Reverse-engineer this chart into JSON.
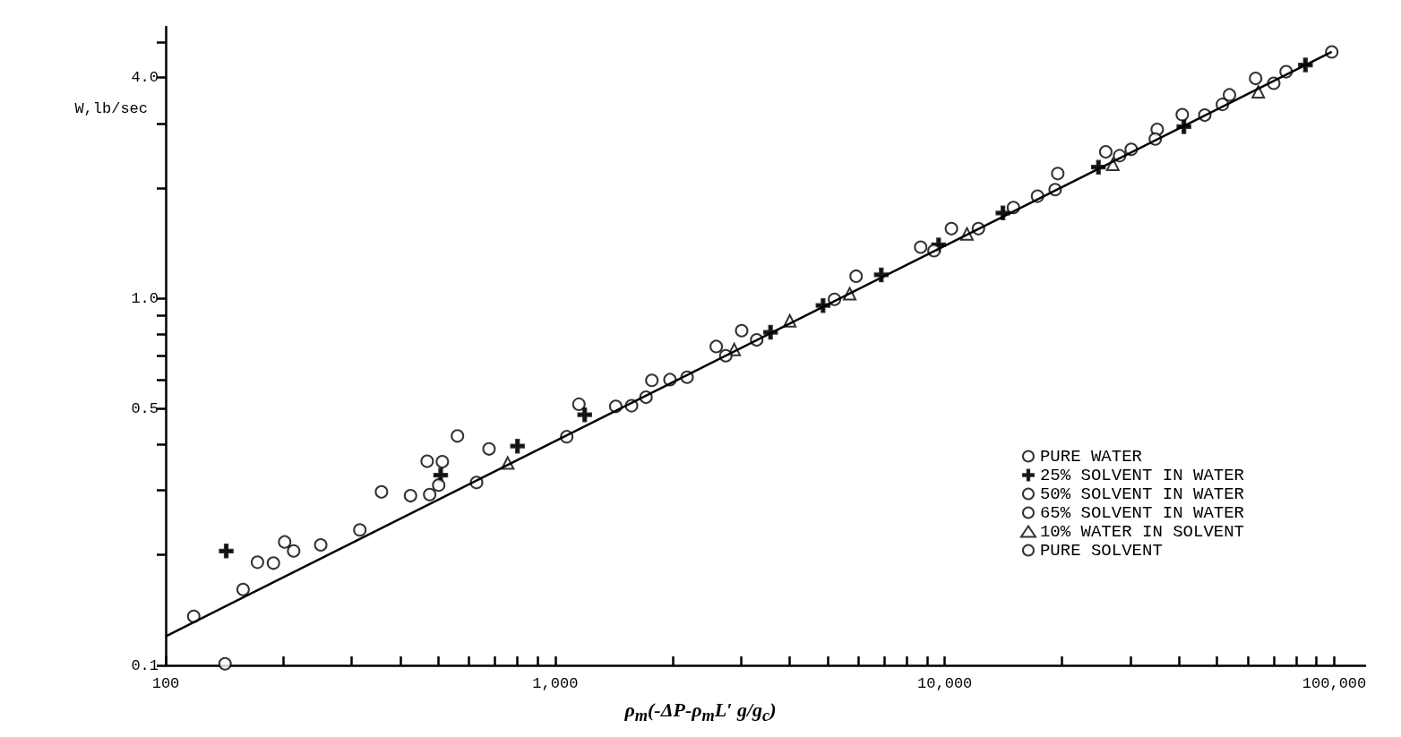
{
  "chart_data": {
    "type": "scatter",
    "xlabel": "ρ$_{m}$(-ΔP-ρ$_{m}$L′ g/g$_{c}$)",
    "ylabel": "W,lb/sec",
    "log": "xy",
    "grid": false,
    "legend": "right",
    "xlim": [
      100,
      120000
    ],
    "ylim": [
      0.1,
      5.5
    ],
    "xticks": [
      {
        "value": 100,
        "label": "100"
      },
      {
        "value": 200,
        "label": null
      },
      {
        "value": 300,
        "label": null
      },
      {
        "value": 400,
        "label": null
      },
      {
        "value": 500,
        "label": null
      },
      {
        "value": 600,
        "label": null
      },
      {
        "value": 700,
        "label": null
      },
      {
        "value": 800,
        "label": null
      },
      {
        "value": 900,
        "label": null
      },
      {
        "value": 1000,
        "label": "1,000"
      },
      {
        "value": 2000,
        "label": null
      },
      {
        "value": 3000,
        "label": null
      },
      {
        "value": 4000,
        "label": null
      },
      {
        "value": 5000,
        "label": null
      },
      {
        "value": 6000,
        "label": null
      },
      {
        "value": 7000,
        "label": null
      },
      {
        "value": 8000,
        "label": null
      },
      {
        "value": 9000,
        "label": null
      },
      {
        "value": 10000,
        "label": "10,000"
      },
      {
        "value": 20000,
        "label": null
      },
      {
        "value": 30000,
        "label": null
      },
      {
        "value": 40000,
        "label": null
      },
      {
        "value": 50000,
        "label": null
      },
      {
        "value": 60000,
        "label": null
      },
      {
        "value": 70000,
        "label": null
      },
      {
        "value": 80000,
        "label": null
      },
      {
        "value": 90000,
        "label": null
      },
      {
        "value": 100000,
        "label": "100,000"
      }
    ],
    "yticks": [
      0.1,
      {
        "value": 0.2,
        "label": null
      },
      {
        "value": 0.3,
        "label": null
      },
      {
        "value": 0.4,
        "label": null
      },
      0.5,
      {
        "value": 0.6,
        "label": null
      },
      {
        "value": 0.7,
        "label": null
      },
      {
        "value": 0.8,
        "label": null
      },
      {
        "value": 0.9,
        "label": null
      },
      {
        "value": 1,
        "label": "1.0"
      },
      {
        "value": 2,
        "label": null
      },
      {
        "value": 3,
        "label": null
      },
      {
        "value": 4,
        "label": "4.0"
      },
      {
        "value": 5,
        "label": null
      }
    ],
    "series": [
      {
        "name": "PURE WATER",
        "color": "#000000",
        "marker": "circle",
        "x": [
          118,
          158,
          172,
          315,
          425,
          476,
          1070,
          1570,
          1710,
          2180,
          3290,
          17300,
          30100,
          46500,
          69900,
          98500
        ],
        "values": [
          0.136,
          0.161,
          0.191,
          0.234,
          0.29,
          0.292,
          0.42,
          0.51,
          0.538,
          0.61,
          0.771,
          1.9,
          2.55,
          3.16,
          3.86,
          4.7
        ]
      },
      {
        "name": "25% SOLVENT IN WATER",
        "color": "#000000",
        "marker": "cross",
        "x": [
          143,
          508,
          800,
          1190,
          3570,
          4870,
          6870,
          9640,
          14100,
          24800,
          41100,
          84300
        ],
        "values": [
          0.205,
          0.33,
          0.396,
          0.482,
          0.809,
          0.957,
          1.16,
          1.4,
          1.71,
          2.28,
          2.94,
          4.33
        ]
      },
      {
        "name": "50% SOLVENT IN WATER",
        "color": "#000000",
        "marker": "circle",
        "x": [
          189,
          561,
          676,
          1770,
          2590,
          8670
        ],
        "values": [
          0.19,
          0.422,
          0.389,
          0.598,
          0.74,
          1.38
        ]
      },
      {
        "name": "65% SOLVENT IN WATER",
        "color": "#000000",
        "marker": "circle",
        "x": [
          142,
          202,
          358,
          469,
          513,
          1150,
          3010,
          5920,
          10400,
          19500,
          25900,
          35100,
          40700,
          53800,
          62800,
          75200
        ],
        "values": [
          0.101,
          0.217,
          0.297,
          0.36,
          0.359,
          0.515,
          0.817,
          1.15,
          1.55,
          2.19,
          2.51,
          2.89,
          3.17,
          3.59,
          3.98,
          4.15
        ]
      },
      {
        "name": "10% WATER IN SOLVENT",
        "color": "#000000",
        "marker": "triangle",
        "x": [
          755,
          2880,
          4000,
          5700,
          11400,
          27000,
          63800
        ],
        "values": [
          0.356,
          0.726,
          0.869,
          1.03,
          1.5,
          2.32,
          3.66
        ]
      },
      {
        "name": "PURE SOLVENT",
        "color": "#000000",
        "marker": "circle",
        "x": [
          213,
          250,
          502,
          628,
          1430,
          1970,
          2740,
          5210,
          9380,
          12200,
          15000,
          19200,
          28100,
          34700,
          51600
        ],
        "values": [
          0.205,
          0.213,
          0.31,
          0.315,
          0.508,
          0.601,
          0.698,
          0.995,
          1.35,
          1.55,
          1.77,
          1.98,
          2.45,
          2.72,
          3.38
        ]
      },
      {
        "type": "line",
        "color": "#000000",
        "marker": "none",
        "line_style": "solid",
        "x": [
          100,
          98500
        ],
        "values": [
          0.12,
          4.7
        ]
      }
    ]
  }
}
